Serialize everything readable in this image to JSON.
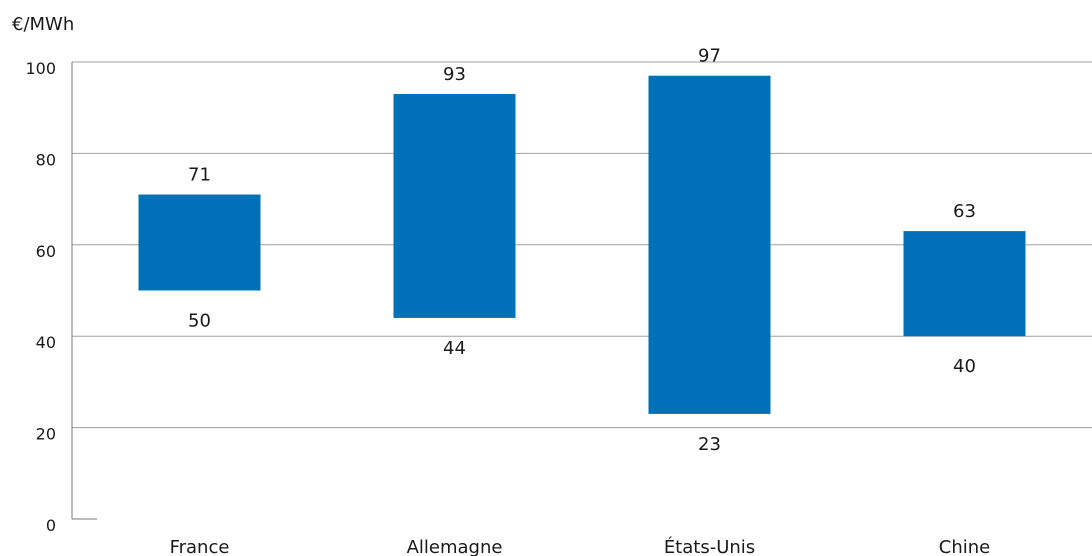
{
  "chart_data": {
    "type": "bar",
    "variant": "floating-range",
    "unit_label": "€/MWh",
    "categories": [
      "France",
      "Allemagne",
      "États-Unis",
      "Chine"
    ],
    "ranges": [
      {
        "low": 50,
        "high": 71
      },
      {
        "low": 44,
        "high": 93
      },
      {
        "low": 23,
        "high": 97
      },
      {
        "low": 40,
        "high": 63
      }
    ],
    "low_labels": [
      "50",
      "44",
      "23",
      "40"
    ],
    "high_labels": [
      "71",
      "93",
      "97",
      "63"
    ],
    "ylim": [
      0,
      100
    ],
    "yticks": [
      "0",
      "20",
      "40",
      "60",
      "80",
      "100"
    ],
    "grid": true,
    "bar_color": "#0070b8",
    "grid_color": "#a0a0a0"
  }
}
